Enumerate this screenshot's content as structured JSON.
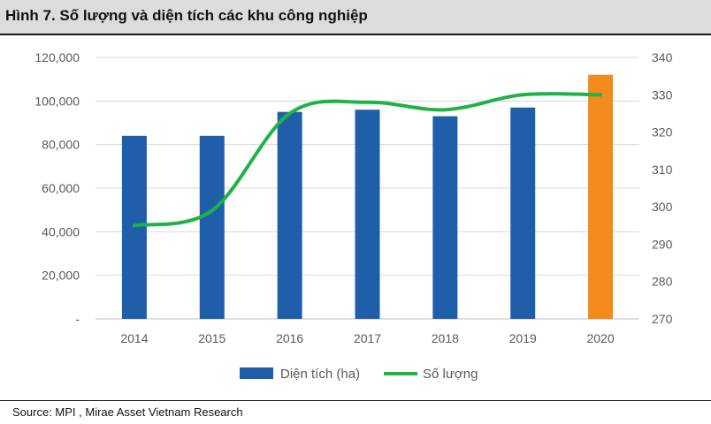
{
  "header": {
    "title": "Hình 7. Số lượng và diện tích các khu công nghiệp"
  },
  "footer": {
    "source": "Source: MPI , Mirae Asset Vietnam Research"
  },
  "colors": {
    "bar": "#1f5fa9",
    "bar_highlight": "#f28a1c",
    "line": "#1fb24a",
    "axis_text": "#595959",
    "title_bg": "#dcdcdc"
  },
  "chart_data": {
    "type": "bar",
    "categories": [
      "2014",
      "2015",
      "2016",
      "2017",
      "2018",
      "2019",
      "2020"
    ],
    "series": [
      {
        "name": "Diện tích (ha)",
        "type": "bar",
        "axis": "left",
        "values": [
          84000,
          84000,
          95000,
          96000,
          93000,
          97000,
          112000
        ],
        "highlight_index": 6
      },
      {
        "name": "Số lượng",
        "type": "line",
        "axis": "right",
        "values": [
          295,
          299,
          325,
          328,
          326,
          330,
          330
        ]
      }
    ],
    "y_left": {
      "ylim": [
        0,
        120000
      ],
      "ticks": [
        0,
        20000,
        40000,
        60000,
        80000,
        100000,
        120000
      ],
      "tick_labels": [
        "-",
        "20,000",
        "40,000",
        "60,000",
        "80,000",
        "100,000",
        "120,000"
      ]
    },
    "y_right": {
      "ylim": [
        270,
        340
      ],
      "ticks": [
        270,
        280,
        290,
        300,
        310,
        320,
        330,
        340
      ],
      "tick_labels": [
        "270",
        "280",
        "290",
        "300",
        "310",
        "320",
        "330",
        "340"
      ]
    },
    "grid": true,
    "legend_position": "bottom-center",
    "title": "",
    "xlabel": "",
    "ylabel": ""
  }
}
